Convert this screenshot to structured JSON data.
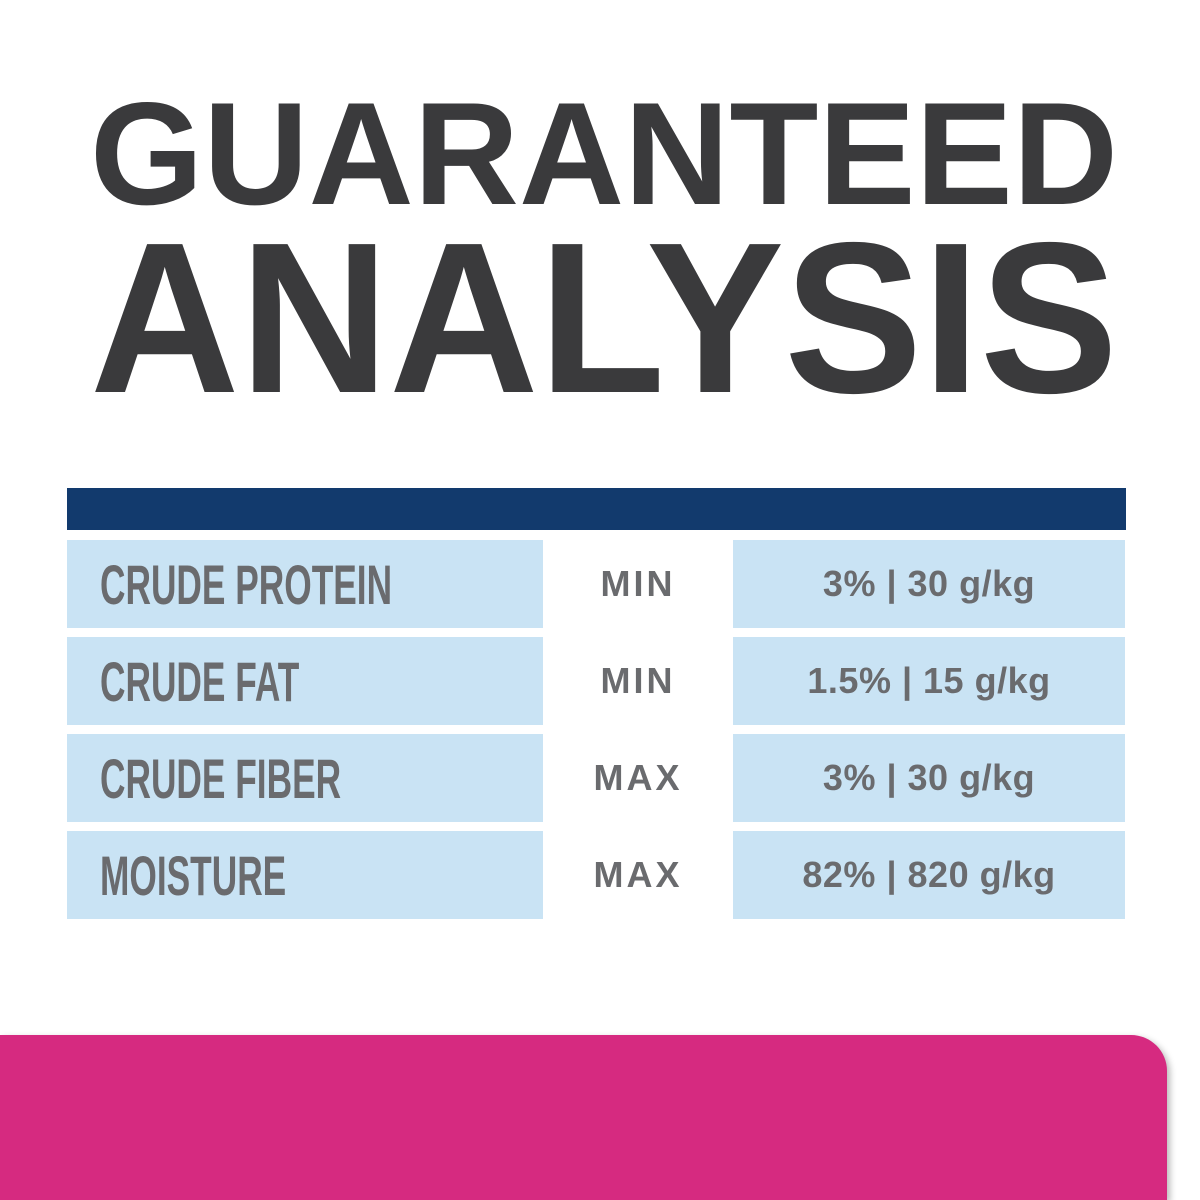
{
  "title": {
    "line1": "GUARANTEED",
    "line2": "ANALYSIS"
  },
  "table": {
    "rows": [
      {
        "label": "CRUDE PROTEIN",
        "limit": "MIN",
        "value": "3% | 30 g/kg"
      },
      {
        "label": "CRUDE FAT",
        "limit": "MIN",
        "value": "1.5% | 15 g/kg"
      },
      {
        "label": "CRUDE FIBER",
        "limit": "MAX",
        "value": "3% | 30 g/kg"
      },
      {
        "label": "MOISTURE",
        "limit": "MAX",
        "value": "82% | 820 g/kg"
      }
    ]
  },
  "colors": {
    "title-text": "#3a3a3c",
    "header-bar": "#123a6d",
    "row-bg": "#c9e3f4",
    "table-text": "#6a6b6e",
    "footer-bar": "#d62a80",
    "background": "#ffffff"
  }
}
